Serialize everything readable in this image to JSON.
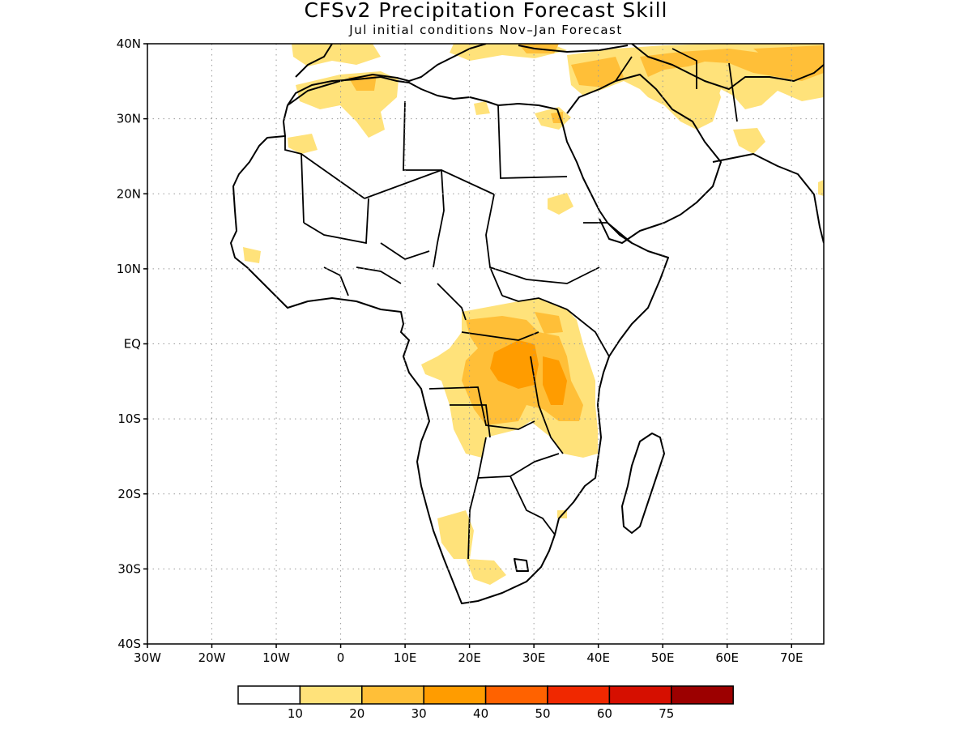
{
  "title": "CFSv2 Precipitation Forecast Skill",
  "subtitle": "Jul initial conditions  Nov–Jan Forecast",
  "axes": {
    "lat_labels": [
      "40N",
      "30N",
      "20N",
      "10N",
      "EQ",
      "10S",
      "20S",
      "30S",
      "40S"
    ],
    "lon_labels": [
      "30W",
      "20W",
      "10W",
      "0",
      "10E",
      "20E",
      "30E",
      "40E",
      "50E",
      "60E",
      "70E"
    ],
    "lat_range": [
      -40,
      40
    ],
    "lon_range": [
      -30,
      75
    ],
    "grid": "dotted"
  },
  "colorbar": {
    "labels": [
      "10",
      "20",
      "30",
      "40",
      "50",
      "60",
      "75"
    ],
    "colors": [
      "#ffffff",
      "#ffe27a",
      "#ffbf38",
      "#ff9c00",
      "#ff6200",
      "#f02800",
      "#d60f00",
      "#9c0000"
    ]
  }
}
